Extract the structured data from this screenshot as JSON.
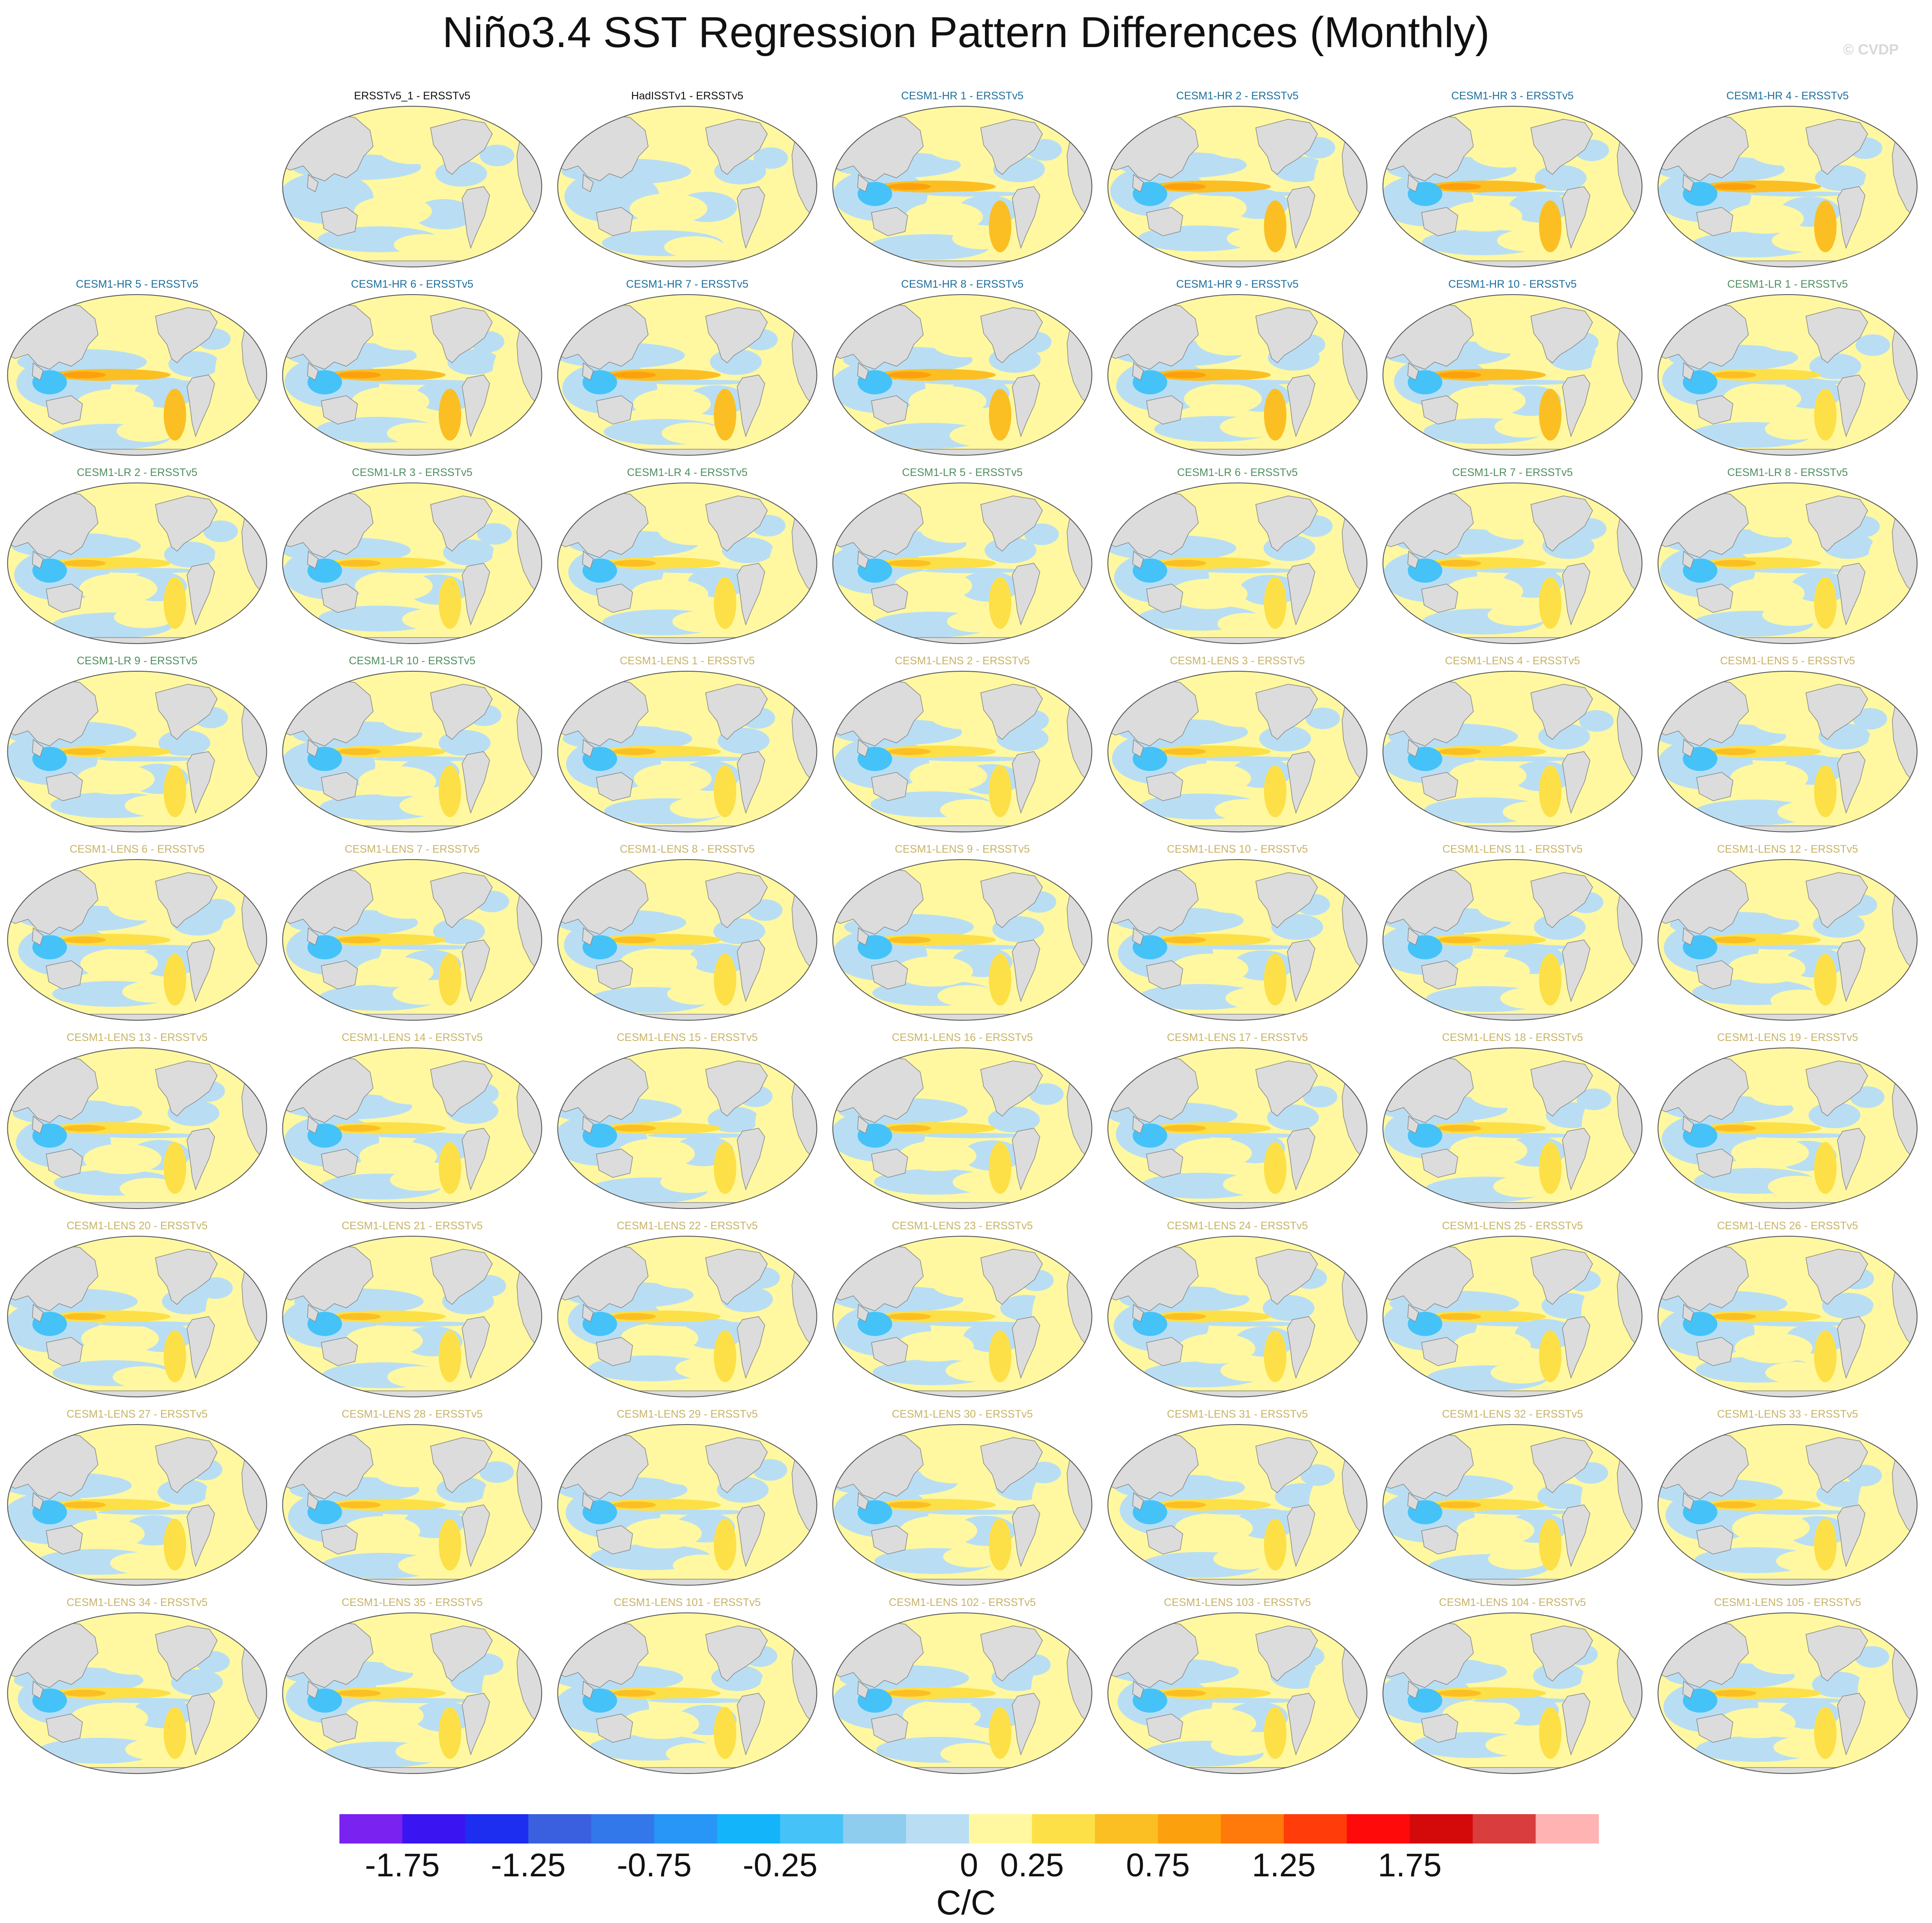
{
  "title": "Niño3.4 SST Regression Pattern Differences (Monthly)",
  "credit": "© CVDP",
  "colors": {
    "land": "#dcdcdc",
    "coast": "#8a8a8a",
    "obs_title": "#111111",
    "hr_title": "#1f6f9c",
    "lr_title": "#4f8f5f",
    "lens_title": "#c8b366"
  },
  "chart_data": {
    "type": "map-panel-grid",
    "projection": "Robinson (Pacific-centered)",
    "layout": {
      "rows": 9,
      "columns": 7,
      "first_row_starts_at_column": 2
    },
    "panels": [
      {
        "label": "ERSSTv5_1 - ERSSTv5",
        "group": "obs"
      },
      {
        "label": "HadISSTv1 - ERSSTv5",
        "group": "obs"
      },
      {
        "label": "CESM1-HR 1 - ERSSTv5",
        "group": "hr"
      },
      {
        "label": "CESM1-HR 2 - ERSSTv5",
        "group": "hr"
      },
      {
        "label": "CESM1-HR 3 - ERSSTv5",
        "group": "hr"
      },
      {
        "label": "CESM1-HR 4 - ERSSTv5",
        "group": "hr"
      },
      {
        "label": "CESM1-HR 5 - ERSSTv5",
        "group": "hr"
      },
      {
        "label": "CESM1-HR 6 - ERSSTv5",
        "group": "hr"
      },
      {
        "label": "CESM1-HR 7 - ERSSTv5",
        "group": "hr"
      },
      {
        "label": "CESM1-HR 8 - ERSSTv5",
        "group": "hr"
      },
      {
        "label": "CESM1-HR 9 - ERSSTv5",
        "group": "hr"
      },
      {
        "label": "CESM1-HR 10 - ERSSTv5",
        "group": "hr"
      },
      {
        "label": "CESM1-LR 1 - ERSSTv5",
        "group": "lr"
      },
      {
        "label": "CESM1-LR 2 - ERSSTv5",
        "group": "lr"
      },
      {
        "label": "CESM1-LR 3 - ERSSTv5",
        "group": "lr"
      },
      {
        "label": "CESM1-LR 4 - ERSSTv5",
        "group": "lr"
      },
      {
        "label": "CESM1-LR 5 - ERSSTv5",
        "group": "lr"
      },
      {
        "label": "CESM1-LR 6 - ERSSTv5",
        "group": "lr"
      },
      {
        "label": "CESM1-LR 7 - ERSSTv5",
        "group": "lr"
      },
      {
        "label": "CESM1-LR 8 - ERSSTv5",
        "group": "lr"
      },
      {
        "label": "CESM1-LR 9 - ERSSTv5",
        "group": "lr"
      },
      {
        "label": "CESM1-LR 10 - ERSSTv5",
        "group": "lr"
      },
      {
        "label": "CESM1-LENS 1 - ERSSTv5",
        "group": "lens"
      },
      {
        "label": "CESM1-LENS 2 - ERSSTv5",
        "group": "lens"
      },
      {
        "label": "CESM1-LENS 3 - ERSSTv5",
        "group": "lens"
      },
      {
        "label": "CESM1-LENS 4 - ERSSTv5",
        "group": "lens"
      },
      {
        "label": "CESM1-LENS 5 - ERSSTv5",
        "group": "lens"
      },
      {
        "label": "CESM1-LENS 6 - ERSSTv5",
        "group": "lens"
      },
      {
        "label": "CESM1-LENS 7 - ERSSTv5",
        "group": "lens"
      },
      {
        "label": "CESM1-LENS 8 - ERSSTv5",
        "group": "lens"
      },
      {
        "label": "CESM1-LENS 9 - ERSSTv5",
        "group": "lens"
      },
      {
        "label": "CESM1-LENS 10 - ERSSTv5",
        "group": "lens"
      },
      {
        "label": "CESM1-LENS 11 - ERSSTv5",
        "group": "lens"
      },
      {
        "label": "CESM1-LENS 12 - ERSSTv5",
        "group": "lens"
      },
      {
        "label": "CESM1-LENS 13 - ERSSTv5",
        "group": "lens"
      },
      {
        "label": "CESM1-LENS 14 - ERSSTv5",
        "group": "lens"
      },
      {
        "label": "CESM1-LENS 15 - ERSSTv5",
        "group": "lens"
      },
      {
        "label": "CESM1-LENS 16 - ERSSTv5",
        "group": "lens"
      },
      {
        "label": "CESM1-LENS 17 - ERSSTv5",
        "group": "lens"
      },
      {
        "label": "CESM1-LENS 18 - ERSSTv5",
        "group": "lens"
      },
      {
        "label": "CESM1-LENS 19 - ERSSTv5",
        "group": "lens"
      },
      {
        "label": "CESM1-LENS 20 - ERSSTv5",
        "group": "lens"
      },
      {
        "label": "CESM1-LENS 21 - ERSSTv5",
        "group": "lens"
      },
      {
        "label": "CESM1-LENS 22 - ERSSTv5",
        "group": "lens"
      },
      {
        "label": "CESM1-LENS 23 - ERSSTv5",
        "group": "lens"
      },
      {
        "label": "CESM1-LENS 24 - ERSSTv5",
        "group": "lens"
      },
      {
        "label": "CESM1-LENS 25 - ERSSTv5",
        "group": "lens"
      },
      {
        "label": "CESM1-LENS 26 - ERSSTv5",
        "group": "lens"
      },
      {
        "label": "CESM1-LENS 27 - ERSSTv5",
        "group": "lens"
      },
      {
        "label": "CESM1-LENS 28 - ERSSTv5",
        "group": "lens"
      },
      {
        "label": "CESM1-LENS 29 - ERSSTv5",
        "group": "lens"
      },
      {
        "label": "CESM1-LENS 30 - ERSSTv5",
        "group": "lens"
      },
      {
        "label": "CESM1-LENS 31 - ERSSTv5",
        "group": "lens"
      },
      {
        "label": "CESM1-LENS 32 - ERSSTv5",
        "group": "lens"
      },
      {
        "label": "CESM1-LENS 33 - ERSSTv5",
        "group": "lens"
      },
      {
        "label": "CESM1-LENS 34 - ERSSTv5",
        "group": "lens"
      },
      {
        "label": "CESM1-LENS 35 - ERSSTv5",
        "group": "lens"
      },
      {
        "label": "CESM1-LENS 101 - ERSSTv5",
        "group": "lens"
      },
      {
        "label": "CESM1-LENS 102 - ERSSTv5",
        "group": "lens"
      },
      {
        "label": "CESM1-LENS 103 - ERSSTv5",
        "group": "lens"
      },
      {
        "label": "CESM1-LENS 104 - ERSSTv5",
        "group": "lens"
      },
      {
        "label": "CESM1-LENS 105 - ERSSTv5",
        "group": "lens"
      }
    ],
    "colorbar": {
      "unit_label": "C/C",
      "tick_labels": [
        "-1.75",
        "-1.25",
        "-0.75",
        "-0.25",
        "0",
        "0.25",
        "0.75",
        "1.25",
        "1.75"
      ],
      "colors": [
        "#7a22f0",
        "#3b14f2",
        "#1e2ef0",
        "#3a60e0",
        "#3378ea",
        "#2796f7",
        "#14b4fa",
        "#45c3f8",
        "#8fcdee",
        "#b9def4",
        "#fff8a0",
        "#fde047",
        "#fbbf24",
        "#fca10d",
        "#ff7a0a",
        "#ff3c0a",
        "#ff0a0a",
        "#d40a0a",
        "#d93d3d",
        "#ffb3b3"
      ]
    }
  }
}
